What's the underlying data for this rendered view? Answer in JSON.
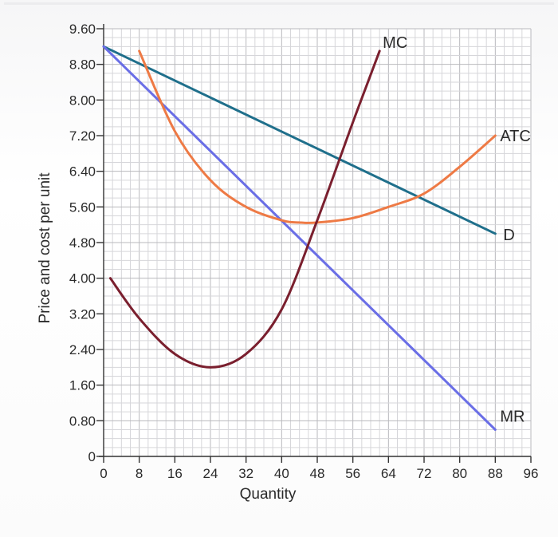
{
  "chart_data": {
    "type": "line",
    "title": "",
    "xlabel": "Quantity",
    "ylabel": "Price and cost per unit",
    "xlim": [
      0,
      96
    ],
    "ylim": [
      0,
      9.6
    ],
    "grid": true,
    "x_ticks": [
      "0",
      "8",
      "16",
      "24",
      "32",
      "40",
      "48",
      "56",
      "64",
      "72",
      "80",
      "88",
      "96"
    ],
    "y_ticks": [
      "0",
      "0.80",
      "1.60",
      "2.40",
      "3.20",
      "4.00",
      "4.80",
      "5.60",
      "6.40",
      "7.20",
      "8.00",
      "8.80",
      "9.60"
    ],
    "series": [
      {
        "name": "D",
        "color": "#1f6f8b",
        "x": [
          0,
          88
        ],
        "y": [
          9.2,
          5.0
        ]
      },
      {
        "name": "MR",
        "color": "#6a6ee6",
        "x": [
          0,
          88
        ],
        "y": [
          9.2,
          0.6
        ]
      },
      {
        "name": "ATC",
        "color": "#ee7a45",
        "x": [
          8,
          16,
          24,
          32,
          40,
          44,
          48,
          56,
          64,
          72,
          80,
          88
        ],
        "y": [
          9.1,
          7.3,
          6.2,
          5.6,
          5.3,
          5.25,
          5.25,
          5.35,
          5.6,
          5.9,
          6.5,
          7.2
        ]
      },
      {
        "name": "MC",
        "color": "#7a1f2e",
        "x": [
          1.5,
          8,
          16,
          24,
          32,
          40,
          48,
          56,
          62
        ],
        "y": [
          4.0,
          3.1,
          2.3,
          2.0,
          2.3,
          3.3,
          5.3,
          7.5,
          9.1
        ]
      }
    ]
  }
}
